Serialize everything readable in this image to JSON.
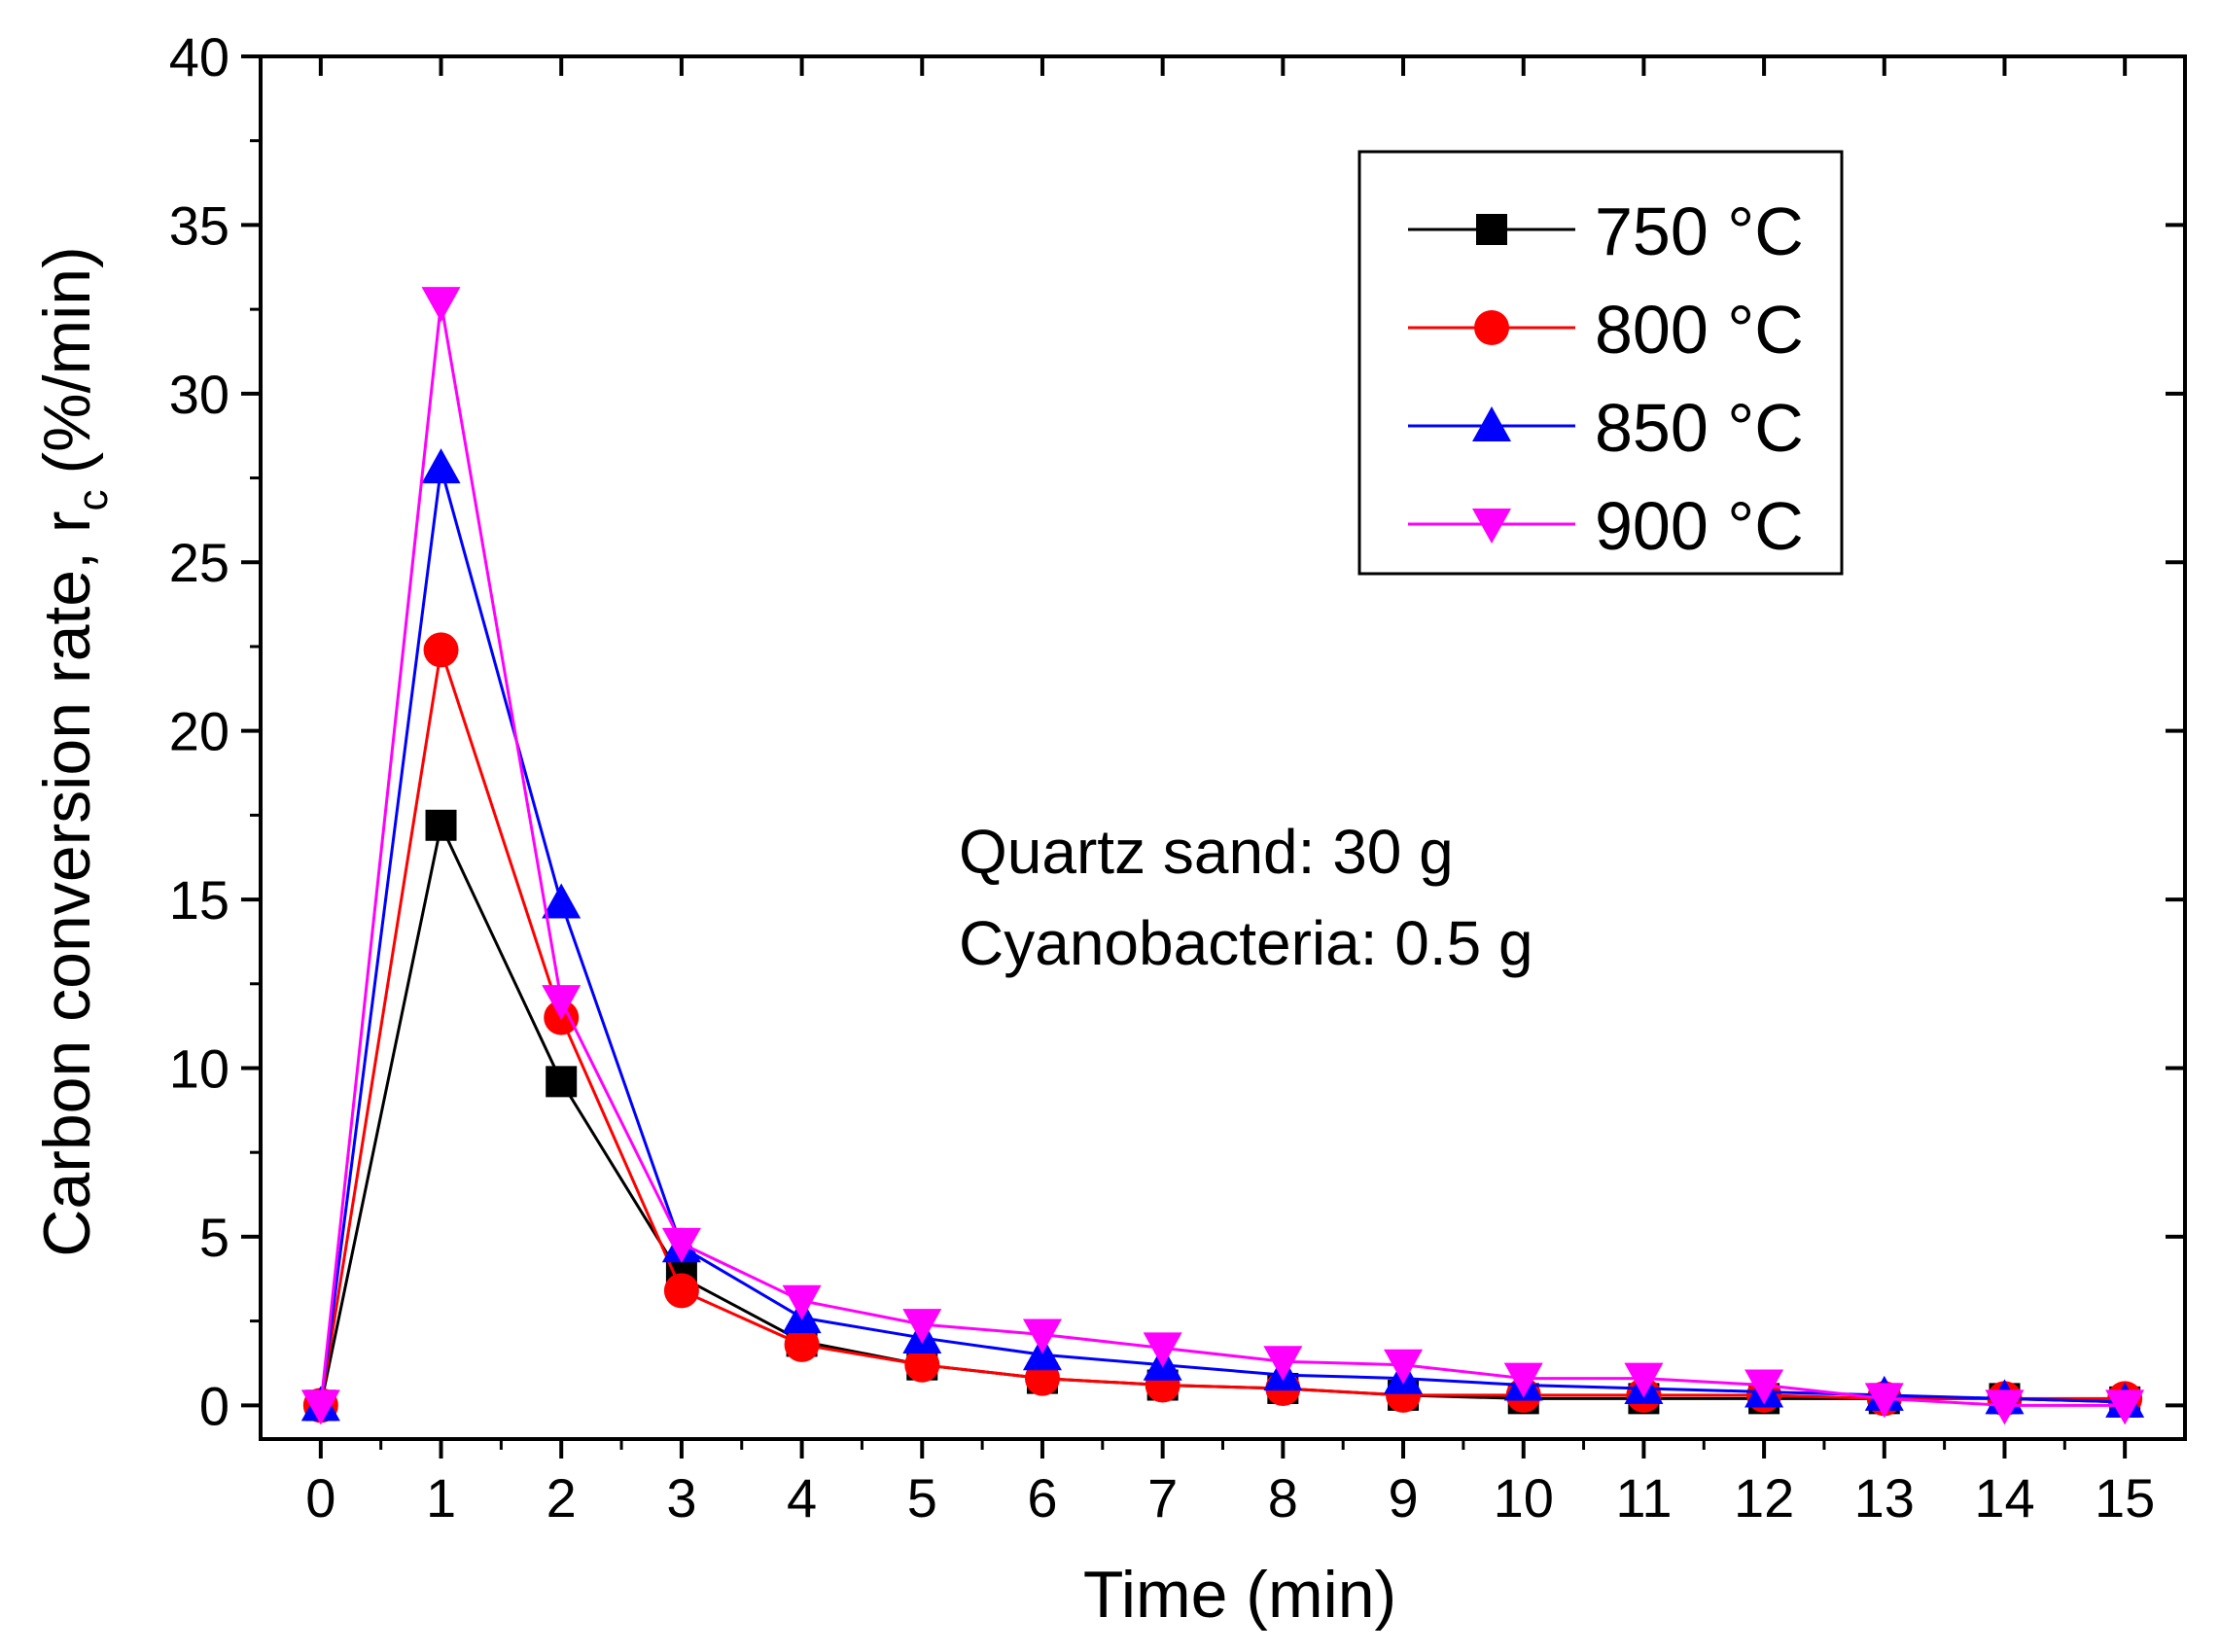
{
  "chart_data": {
    "type": "line",
    "title": "",
    "xlabel": "Time (min)",
    "ylabel": "Carbon conversion rate, r",
    "ylabel_subscript": "c",
    "ylabel_unit": "(%/min)",
    "xlim": [
      -0.5,
      15.5
    ],
    "ylim": [
      -1,
      40
    ],
    "xticks": [
      0,
      1,
      2,
      3,
      4,
      5,
      6,
      7,
      8,
      9,
      10,
      11,
      12,
      13,
      14,
      15
    ],
    "yticks": [
      0,
      5,
      10,
      15,
      20,
      25,
      30,
      35,
      40
    ],
    "grid": false,
    "legend_position": "top-right",
    "x": [
      0,
      1,
      2,
      3,
      4,
      5,
      6,
      7,
      8,
      9,
      10,
      11,
      12,
      13,
      14,
      15
    ],
    "series": [
      {
        "name": "750 °C",
        "color": "#000000",
        "marker": "square",
        "values": [
          0,
          17.2,
          9.6,
          3.8,
          1.9,
          1.2,
          0.8,
          0.6,
          0.5,
          0.3,
          0.2,
          0.2,
          0.2,
          0.2,
          0.2,
          0.1
        ]
      },
      {
        "name": "800 °C",
        "color": "#ff0000",
        "marker": "circle",
        "values": [
          0,
          22.4,
          11.5,
          3.4,
          1.8,
          1.2,
          0.8,
          0.6,
          0.5,
          0.3,
          0.3,
          0.3,
          0.3,
          0.2,
          0.2,
          0.2
        ]
      },
      {
        "name": "850 °C",
        "color": "#0000ff",
        "marker": "triangle-up",
        "values": [
          0,
          27.8,
          14.9,
          4.7,
          2.6,
          2.0,
          1.5,
          1.2,
          0.9,
          0.8,
          0.6,
          0.5,
          0.4,
          0.3,
          0.2,
          0.1
        ]
      },
      {
        "name": "900 °C",
        "color": "#ff00ff",
        "marker": "triangle-down",
        "values": [
          0,
          32.7,
          12.0,
          4.8,
          3.1,
          2.4,
          2.1,
          1.7,
          1.3,
          1.2,
          0.8,
          0.8,
          0.6,
          0.2,
          0.0,
          0.0
        ]
      }
    ],
    "annotations": [
      "Quartz sand: 30 g",
      "Cyanobacteria: 0.5 g"
    ]
  }
}
